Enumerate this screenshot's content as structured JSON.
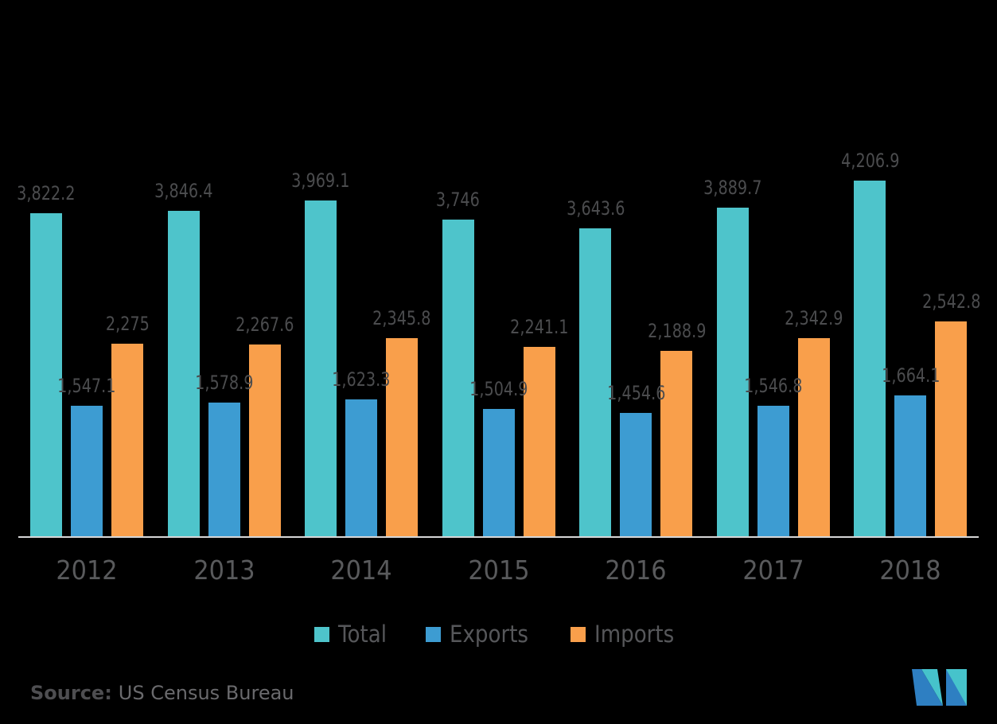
{
  "chart_data": {
    "type": "bar",
    "title": "",
    "xlabel": "",
    "ylabel": "",
    "categories": [
      "2012",
      "2013",
      "2014",
      "2015",
      "2016",
      "2017",
      "2018"
    ],
    "series": [
      {
        "name": "Total",
        "color": "#4ec4cb",
        "values": [
          3822.2,
          3846.4,
          3969.1,
          3746,
          3643.6,
          3889.7,
          4206.9
        ],
        "labels": [
          "3,822.2",
          "3,846.4",
          "3,969.1",
          "3,746",
          "3,643.6",
          "3,889.7",
          "4,206.9"
        ]
      },
      {
        "name": "Exports",
        "color": "#3d9cd2",
        "values": [
          1547.1,
          1578.9,
          1623.3,
          1504.9,
          1454.6,
          1546.8,
          1664.1
        ],
        "labels": [
          "1,547.1",
          "1,578.9",
          "1,623.3",
          "1,504.9",
          "1,454.6",
          "1,546.8",
          "1,664.1"
        ]
      },
      {
        "name": "Imports",
        "color": "#f99f4b",
        "values": [
          2275,
          2267.6,
          2345.8,
          2241.1,
          2188.9,
          2342.9,
          2542.8
        ],
        "labels": [
          "2,275",
          "2,267.6",
          "2,345.8",
          "2,241.1",
          "2,188.9",
          "2,342.9",
          "2,542.8"
        ]
      }
    ],
    "ylim": [
      0,
      4450
    ],
    "grid": false,
    "value_labels_shown": true,
    "legend_position": "bottom",
    "background_color": "#000000",
    "value_label_color": "#4b4c4e",
    "axis_tick_color": "#595a5c",
    "axis_line_color": "#d6d6d7"
  },
  "legend": {
    "items": [
      {
        "label": "Total",
        "color": "#4ec4cb"
      },
      {
        "label": "Exports",
        "color": "#3d9cd2"
      },
      {
        "label": "Imports",
        "color": "#f99f4b"
      }
    ]
  },
  "footer": {
    "source_label": "Source:",
    "source_text": "US Census Bureau"
  },
  "logo": {
    "name": "mordor-intelligence-logo",
    "teal": "#46c3cb",
    "blue": "#2e7fc2"
  }
}
